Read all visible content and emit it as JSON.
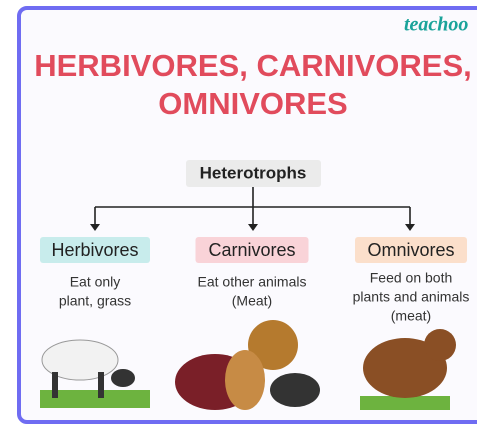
{
  "brand": "teachoo",
  "title": {
    "lines": [
      "HERBIVORES, CARNIVORES,",
      "OMNIVORES"
    ]
  },
  "root": {
    "label": "Heterotrophs"
  },
  "nodes": [
    {
      "label": "Herbivores",
      "description": [
        "Eat only",
        "plant, grass"
      ]
    },
    {
      "label": "Carnivores",
      "description": [
        "Eat other animals",
        "(Meat)"
      ]
    },
    {
      "label": "Omnivores",
      "description": [
        "Feed on both",
        "plants and animals",
        "(meat)"
      ]
    }
  ]
}
